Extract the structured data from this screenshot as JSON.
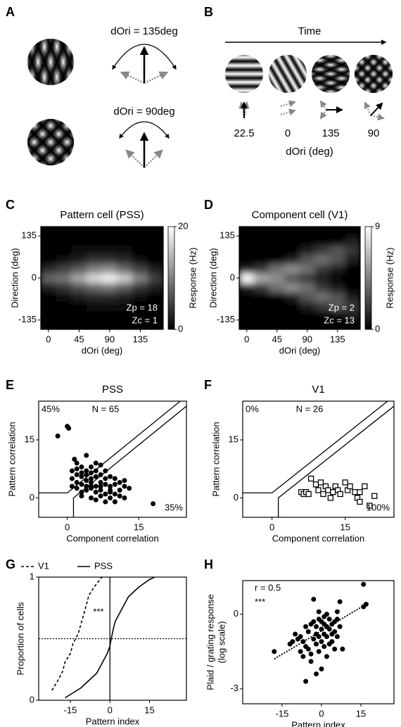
{
  "panel_labels": [
    "A",
    "B",
    "C",
    "D",
    "E",
    "F",
    "G",
    "H"
  ],
  "diagram_a": {
    "labels": [
      "dOri = 135deg",
      "dOri = 90deg"
    ]
  },
  "diagram_b": {
    "title": "Time",
    "stimulus_labels": [
      "22.5",
      "0",
      "135",
      "90"
    ],
    "xlabel": "dOri (deg)"
  },
  "chart_data": [
    {
      "type": "heatmap",
      "title": "Pattern cell (PSS)",
      "xlabel": "dOri (deg)",
      "ylabel": "Direction (deg)",
      "x": [
        0,
        22.5,
        45,
        67.5,
        90,
        112.5,
        135,
        157.5
      ],
      "y": [
        -150,
        -120,
        -90,
        -60,
        -30,
        0,
        30,
        60,
        90,
        120,
        150
      ],
      "z": [
        [
          0,
          0,
          0,
          0,
          0,
          0,
          0,
          0
        ],
        [
          0,
          0,
          0,
          0,
          0,
          0,
          0,
          0
        ],
        [
          0,
          0,
          0,
          1,
          1,
          1,
          0,
          0
        ],
        [
          0,
          1,
          2,
          3,
          3,
          2,
          1,
          0
        ],
        [
          2,
          4,
          6,
          8,
          9,
          7,
          4,
          2
        ],
        [
          8,
          9,
          13,
          17,
          19,
          16,
          10,
          5
        ],
        [
          3,
          5,
          7,
          10,
          11,
          8,
          5,
          2
        ],
        [
          0,
          1,
          2,
          4,
          4,
          3,
          1,
          0
        ],
        [
          0,
          0,
          1,
          1,
          1,
          1,
          0,
          0
        ],
        [
          0,
          0,
          0,
          0,
          0,
          0,
          0,
          0
        ],
        [
          0,
          0,
          0,
          0,
          0,
          0,
          0,
          0
        ]
      ],
      "xlim": [
        -11.25,
        168.75
      ],
      "ylim": [
        -165,
        165
      ],
      "xticks": [
        0,
        45,
        90,
        135
      ],
      "yticks": [
        -135,
        0,
        135
      ],
      "clim": [
        0,
        20
      ],
      "cticks": [
        0,
        20
      ],
      "colorbar_label": "Response (Hz)",
      "annotations": [
        "Zp = 18",
        "Zc = 1"
      ]
    },
    {
      "type": "heatmap",
      "title": "Component cell (V1)",
      "xlabel": "dOri (deg)",
      "ylabel": "Direction (deg)",
      "x": [
        0,
        22.5,
        45,
        67.5,
        90,
        112.5,
        135,
        157.5
      ],
      "y": [
        -150,
        -120,
        -90,
        -60,
        -30,
        0,
        30,
        60,
        90,
        120,
        150
      ],
      "z": [
        [
          0,
          0,
          0,
          0,
          0,
          0,
          0,
          0
        ],
        [
          0,
          0,
          0,
          0,
          0,
          0,
          0,
          1
        ],
        [
          0,
          0,
          0,
          0,
          1,
          2,
          3,
          2
        ],
        [
          0,
          0,
          0,
          1,
          3,
          4,
          3,
          1
        ],
        [
          1,
          2,
          4,
          5,
          4,
          2,
          1,
          0
        ],
        [
          9,
          6,
          5,
          3,
          2,
          1,
          0,
          0
        ],
        [
          1,
          2,
          4,
          5,
          4,
          2,
          1,
          0
        ],
        [
          0,
          0,
          0,
          1,
          3,
          4,
          3,
          1
        ],
        [
          0,
          0,
          0,
          0,
          1,
          2,
          3,
          2
        ],
        [
          0,
          0,
          0,
          0,
          0,
          0,
          0,
          1
        ],
        [
          0,
          0,
          0,
          0,
          0,
          0,
          0,
          0
        ]
      ],
      "xlim": [
        -11.25,
        168.75
      ],
      "ylim": [
        -165,
        165
      ],
      "xticks": [
        0,
        45,
        90,
        135
      ],
      "yticks": [
        -135,
        0,
        135
      ],
      "clim": [
        0,
        9
      ],
      "cticks": [
        0,
        9
      ],
      "colorbar_label": "Response (Hz)",
      "annotations": [
        "Zp = 2",
        "Zc = 13"
      ]
    },
    {
      "type": "scatter",
      "title": "PSS",
      "xlabel": "Component correlation",
      "ylabel": "Pattern correlation",
      "marker": "circle",
      "filled": true,
      "color": "#000000",
      "x": [
        0,
        0.3,
        -2,
        1.5,
        2,
        4,
        3,
        5,
        6,
        7,
        1,
        2,
        3,
        4,
        5,
        6,
        7,
        8,
        9,
        10,
        2,
        3,
        4,
        5,
        6,
        7,
        8,
        9,
        10,
        11,
        12,
        13,
        1,
        2,
        3,
        4,
        5,
        6,
        7,
        8,
        9,
        10,
        11,
        12,
        3,
        5,
        6,
        7,
        8,
        10,
        18,
        4,
        6,
        3,
        5,
        1,
        2,
        8,
        9,
        4,
        7,
        11,
        12,
        9,
        5
      ],
      "values": [
        18.5,
        18,
        16,
        10,
        9,
        11,
        8,
        8,
        7,
        8.5,
        7,
        6,
        5.5,
        6,
        6.5,
        5.5,
        6,
        5,
        5.5,
        5,
        4,
        3.5,
        4.5,
        4,
        3,
        4,
        3.5,
        3,
        3.5,
        2,
        3,
        2.5,
        3,
        2.5,
        1.5,
        2,
        2.5,
        1.5,
        2,
        1,
        1.5,
        1,
        0.5,
        0,
        0.5,
        0,
        -0.5,
        0.5,
        -1,
        -1,
        -1.5,
        7,
        9,
        6.5,
        5,
        5,
        7.5,
        7,
        2,
        3,
        3,
        4,
        4.5,
        0,
        3
      ],
      "xlim": [
        -6,
        25
      ],
      "ylim": [
        -5,
        25
      ],
      "xticks": [
        0,
        15
      ],
      "yticks": [
        0,
        15
      ],
      "annotations": [
        "45%",
        "N = 65",
        "35%"
      ]
    },
    {
      "type": "scatter",
      "title": "V1",
      "xlabel": "Component correlation",
      "ylabel": "Pattern correlation",
      "marker": "square",
      "filled": false,
      "color": "#000000",
      "x": [
        6,
        6.5,
        7,
        7.5,
        8,
        9,
        9.5,
        10,
        10.5,
        11,
        11.5,
        12,
        12.5,
        13,
        13.5,
        14,
        15,
        15.5,
        16,
        17,
        17.5,
        18,
        18,
        19,
        20,
        21
      ],
      "values": [
        1.5,
        1,
        1.5,
        1,
        5,
        3.5,
        2,
        4,
        1,
        3,
        2,
        0,
        1.5,
        3,
        2,
        1,
        4,
        2,
        3,
        1.5,
        0,
        -1,
        1.5,
        3,
        -2,
        0.5
      ],
      "xlim": [
        -6,
        25
      ],
      "ylim": [
        -5,
        25
      ],
      "xticks": [
        0,
        15
      ],
      "yticks": [
        0,
        15
      ],
      "annotations": [
        "0%",
        "N = 26",
        "100%"
      ]
    },
    {
      "type": "line",
      "xlabel": "Pattern index",
      "ylabel": "Proportion of cells",
      "series": [
        {
          "name": "V1",
          "style": "dashed",
          "color": "#000000",
          "x": [
            -22,
            -20,
            -18,
            -17,
            -15,
            -14,
            -12,
            -11,
            -10,
            -9,
            -8,
            -6,
            -3
          ],
          "values": [
            0.08,
            0.15,
            0.23,
            0.31,
            0.38,
            0.46,
            0.54,
            0.62,
            0.69,
            0.77,
            0.85,
            0.92,
            1
          ]
        },
        {
          "name": "PSS",
          "style": "solid",
          "color": "#000000",
          "x": [
            -17,
            -14,
            -11,
            -9,
            -7,
            -5,
            -4,
            -3,
            -2,
            -1,
            0,
            0.5,
            1,
            1.5,
            2,
            3,
            4,
            5,
            6,
            7,
            9,
            11,
            13,
            15,
            17
          ],
          "values": [
            0.02,
            0.06,
            0.1,
            0.14,
            0.18,
            0.22,
            0.26,
            0.3,
            0.34,
            0.38,
            0.44,
            0.5,
            0.55,
            0.6,
            0.64,
            0.68,
            0.72,
            0.76,
            0.8,
            0.84,
            0.88,
            0.92,
            0.95,
            0.98,
            1
          ]
        }
      ],
      "reference_lines": {
        "x": 0,
        "y": 0.5
      },
      "xlim": [
        -27,
        29
      ],
      "ylim": [
        0,
        1
      ],
      "xticks": [
        -15,
        0,
        15
      ],
      "yticks": [
        0,
        1
      ],
      "annotations": [
        "***"
      ]
    },
    {
      "type": "scatter",
      "xlabel": "Pattern index",
      "ylabel": [
        "Plaid / grating response",
        "(log scale)"
      ],
      "marker": "circle",
      "filled": true,
      "color": "#000000",
      "x": [
        -18,
        -12,
        -10,
        -9,
        -8,
        -7,
        -6,
        -6,
        -5,
        -5,
        -4,
        -4,
        -3,
        -3,
        -3,
        -2,
        -2,
        -2,
        -1,
        -1,
        -1,
        0,
        0,
        0,
        0,
        1,
        1,
        1,
        1,
        2,
        2,
        2,
        3,
        3,
        3,
        4,
        4,
        4,
        5,
        5,
        5,
        6,
        6,
        7,
        7,
        8,
        -6,
        -4,
        -2,
        16,
        17,
        16,
        -7,
        -11,
        -8,
        2,
        6,
        -1
      ],
      "values": [
        -1.5,
        -1.2,
        -0.8,
        -1,
        -0.9,
        -1.1,
        -0.5,
        -1.3,
        -1.4,
        -0.7,
        -0.4,
        -1.9,
        -0.3,
        -1,
        0.6,
        -0.8,
        -1.2,
        -0.5,
        -0.9,
        -0.2,
        -1.5,
        -0.6,
        -1.1,
        -0.3,
        -2.2,
        -0.4,
        -0.8,
        -1.3,
        -0.1,
        -0.5,
        -0.9,
        0,
        -0.2,
        -1.2,
        -0.6,
        -0.4,
        -1.1,
        -0.8,
        -0.3,
        -0.7,
        -1.4,
        0.1,
        -0.9,
        0.5,
        -0.5,
        -1.4,
        -2.7,
        -1.6,
        -2.4,
        1.2,
        0.4,
        0.3,
        -1.7,
        -1.1,
        -1.5,
        -1.7,
        -0.2,
        0.1
      ],
      "fit": {
        "x": [
          -18,
          17
        ],
        "values": [
          -1.8,
          0.4
        ]
      },
      "xlim": [
        -30,
        27.6
      ],
      "ylim": [
        -3.6,
        1.35
      ],
      "xticks": [
        -15,
        0,
        15
      ],
      "yticks": [
        -3,
        0
      ],
      "annotations": [
        "r = 0.5",
        "***"
      ]
    }
  ]
}
